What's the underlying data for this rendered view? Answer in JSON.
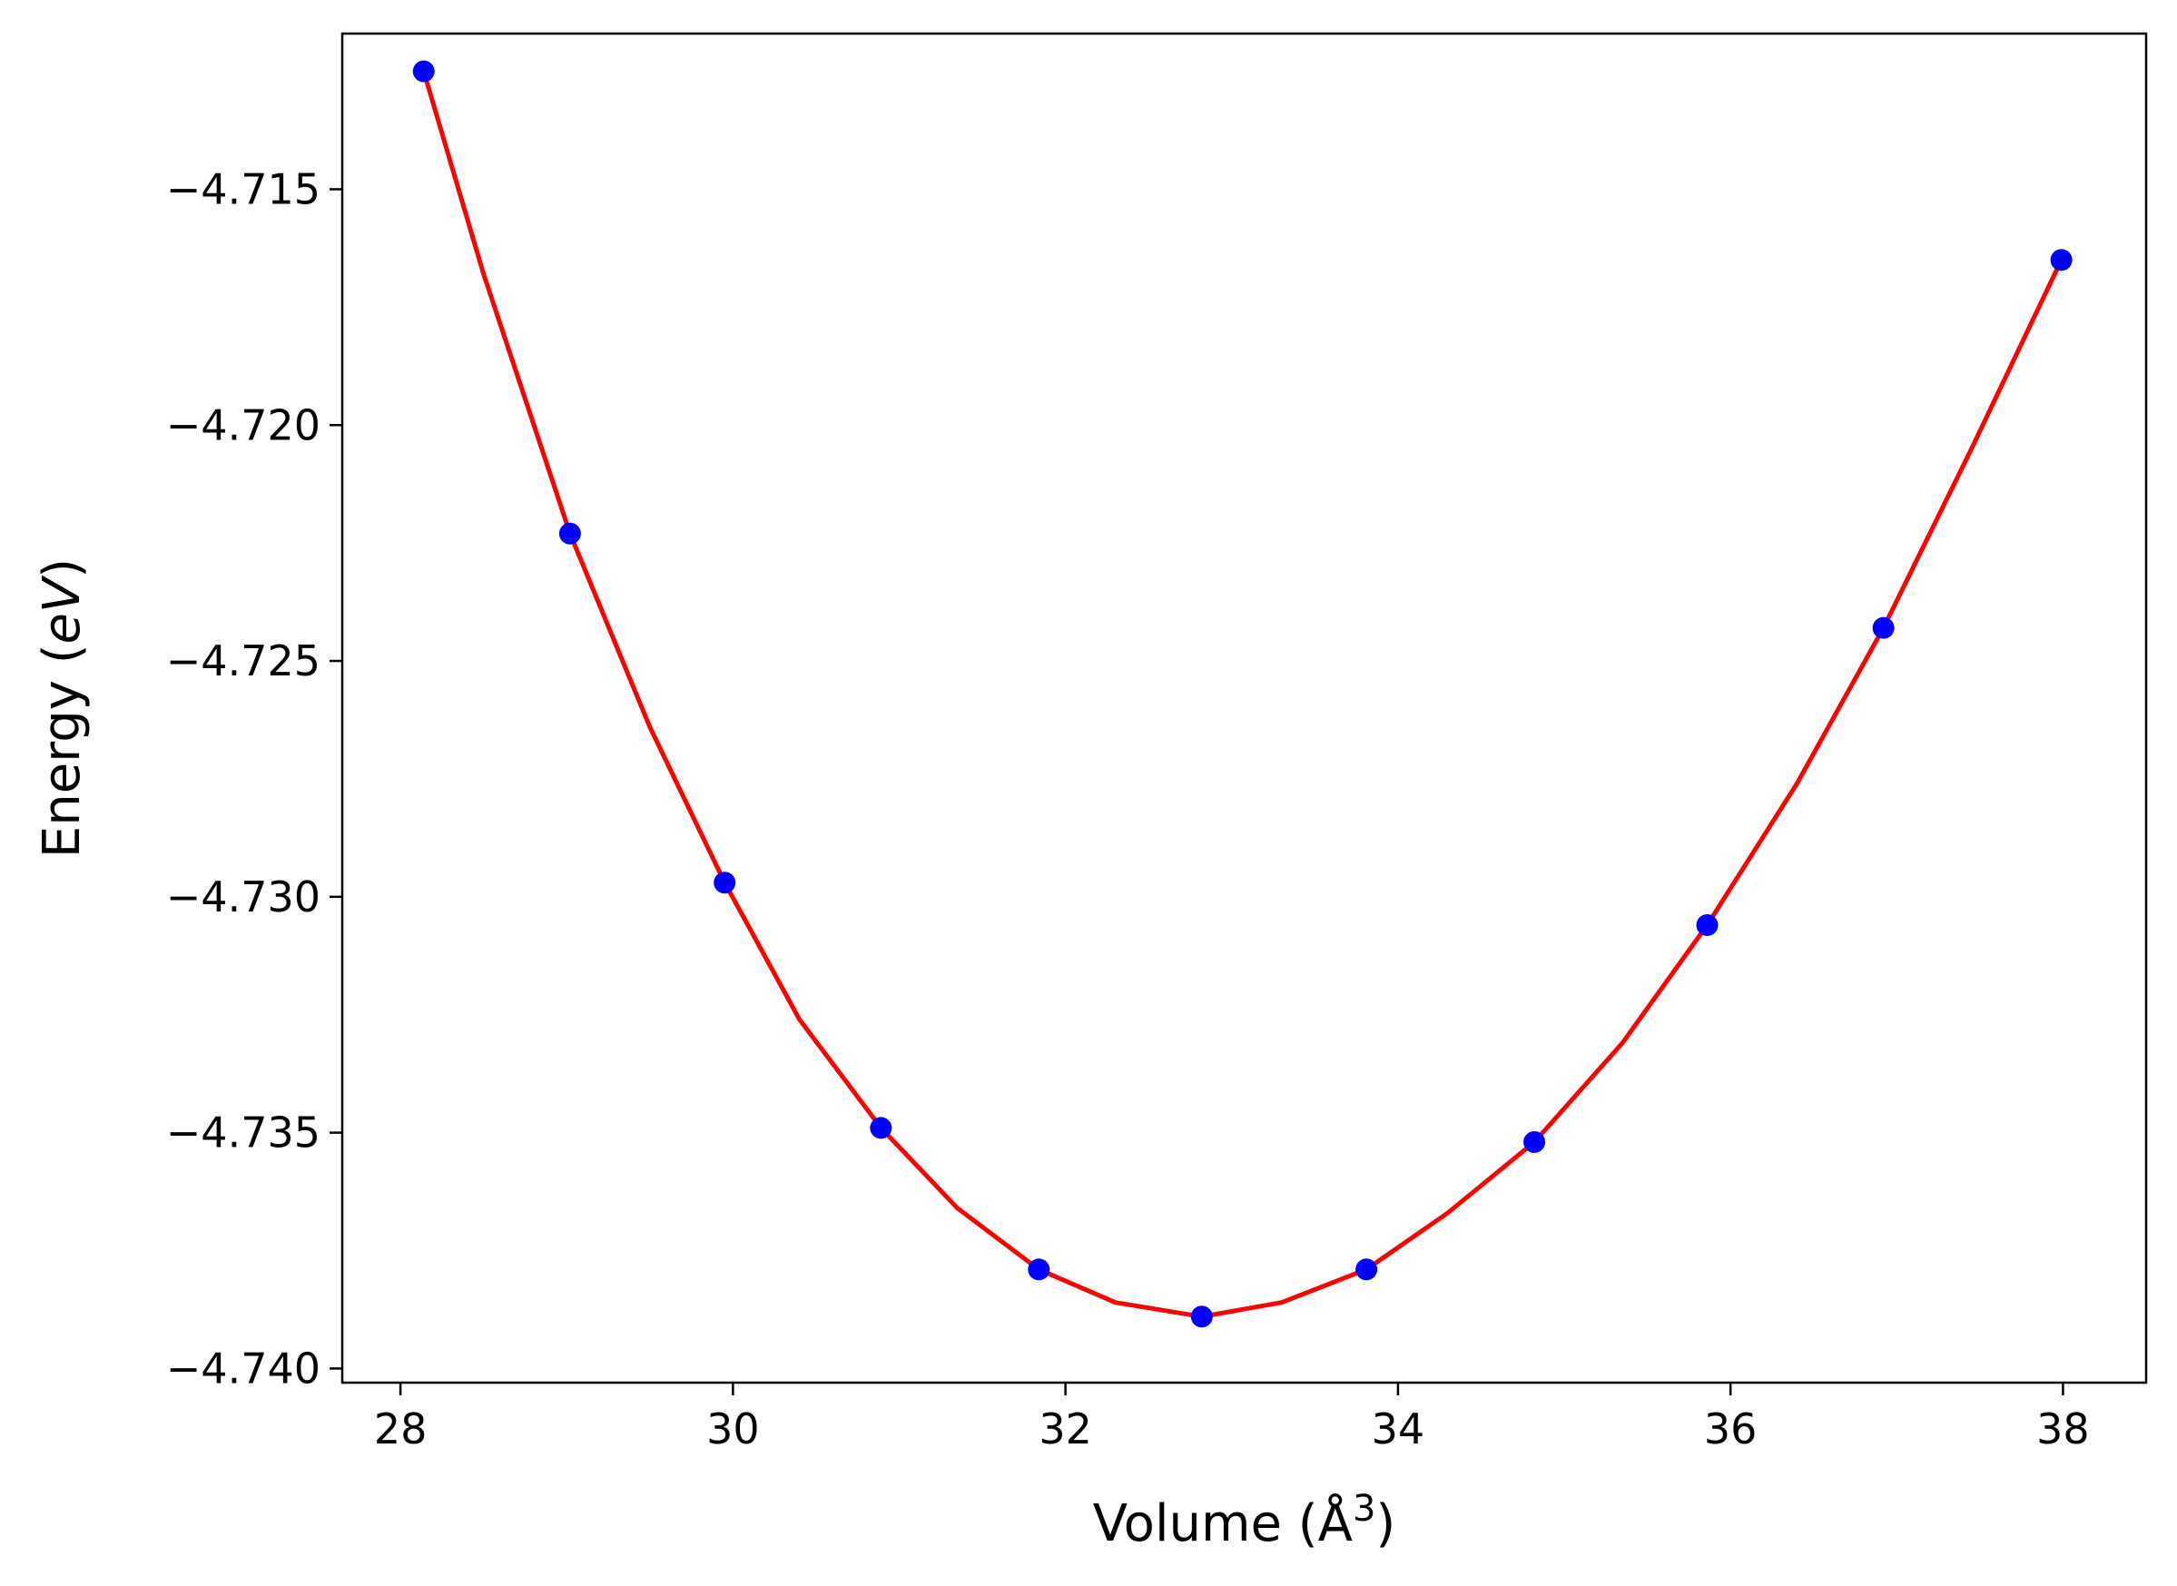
{
  "chart_data": {
    "type": "line",
    "title": "",
    "xlabel": "Volume ($\\AA^3$)",
    "ylabel": "Energy ($eV$)",
    "xlim": [
      27.65,
      38.5
    ],
    "ylim": [
      -4.7403,
      -4.7117
    ],
    "x_ticks": [
      28,
      30,
      32,
      34,
      36,
      38
    ],
    "x_tick_labels": [
      "28",
      "30",
      "32",
      "34",
      "36",
      "38"
    ],
    "y_ticks": [
      -4.715,
      -4.72,
      -4.725,
      -4.73,
      -4.735,
      -4.74
    ],
    "y_tick_labels": [
      "−4.715",
      "−4.720",
      "−4.725",
      "−4.730",
      "−4.735",
      "−4.740"
    ],
    "grid": false,
    "series": [
      {
        "mode": "markers",
        "color": "#0000ff",
        "x": [
          28.14,
          29.02,
          29.95,
          30.89,
          31.84,
          32.82,
          33.81,
          34.82,
          35.86,
          36.92,
          37.99
        ],
        "y": [
          -4.7125,
          -4.7223,
          -4.7297,
          -4.7349,
          -4.7379,
          -4.7389,
          -4.7379,
          -4.7352,
          -4.7306,
          -4.7243,
          -4.7165
        ]
      },
      {
        "mode": "line",
        "color": "#ff0000",
        "x": [
          28.14,
          28.5,
          29.02,
          29.5,
          29.95,
          30.4,
          30.89,
          31.35,
          31.84,
          32.3,
          32.82,
          33.3,
          33.81,
          34.3,
          34.82,
          35.35,
          35.86,
          36.4,
          36.92,
          37.45,
          37.99
        ],
        "y": [
          -4.7125,
          -4.7168,
          -4.7223,
          -4.7264,
          -4.7297,
          -4.7326,
          -4.7349,
          -4.7366,
          -4.7379,
          -4.7386,
          -4.7389,
          -4.7386,
          -4.7379,
          -4.7367,
          -4.7352,
          -4.7331,
          -4.7306,
          -4.7276,
          -4.7243,
          -4.7205,
          -4.7165
        ]
      }
    ]
  }
}
